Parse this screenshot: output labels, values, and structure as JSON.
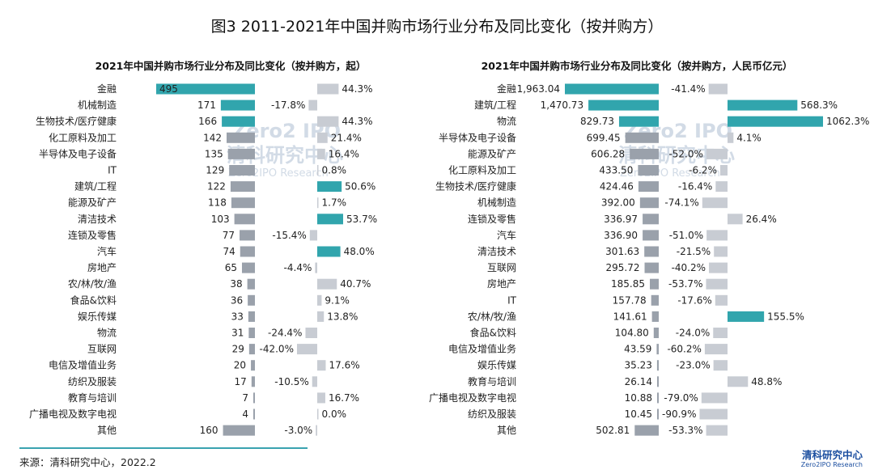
{
  "main_title": "图3 2011-2021年中国并购市场行业分布及同比变化（按并购方）",
  "source_text": "来源：清科研究中心，2022.2",
  "logo": {
    "cn": "清科研究中心",
    "en": "Zero2IPO Research"
  },
  "watermark": {
    "brand": "Zero2 IPO",
    "cn": "清科研究中心",
    "en": "Zero2IPO Research"
  },
  "colors": {
    "highlight": "#31a5ad",
    "bar": "#9aa1ab",
    "pct_bar": "#c8ccd3"
  },
  "chart_data": [
    {
      "type": "bar",
      "title": "2021年中国并购市场行业分布及同比变化（按并购方，起）",
      "categories": [
        "金融",
        "机械制造",
        "生物技术/医疗健康",
        "化工原料及加工",
        "半导体及电子设备",
        "IT",
        "建筑/工程",
        "能源及矿产",
        "清洁技术",
        "连锁及零售",
        "汽车",
        "房地产",
        "农/林/牧/渔",
        "食品&饮料",
        "娱乐传媒",
        "物流",
        "互联网",
        "电信及增值业务",
        "纺织及服装",
        "教育与培训",
        "广播电视及数字电视",
        "其他"
      ],
      "series": [
        {
          "values": [
            495,
            171,
            166,
            142,
            135,
            129,
            122,
            118,
            103,
            77,
            74,
            65,
            38,
            36,
            33,
            31,
            29,
            20,
            17,
            7,
            4,
            160
          ],
          "labels": [
            "495",
            "171",
            "166",
            "142",
            "135",
            "129",
            "122",
            "118",
            "103",
            "77",
            "74",
            "65",
            "38",
            "36",
            "33",
            "31",
            "29",
            "20",
            "17",
            "7",
            "4",
            "160"
          ],
          "highlight": [
            true,
            true,
            true,
            false,
            false,
            false,
            false,
            false,
            false,
            false,
            false,
            false,
            false,
            false,
            false,
            false,
            false,
            false,
            false,
            false,
            false,
            false
          ]
        },
        {
          "values": [
            44.3,
            -17.8,
            44.3,
            21.4,
            16.4,
            0.8,
            50.6,
            1.7,
            53.7,
            -15.4,
            48.0,
            -4.4,
            40.7,
            9.1,
            13.8,
            -24.4,
            -42.0,
            17.6,
            -10.5,
            16.7,
            0.0,
            -3.0
          ],
          "labels": [
            "44.3%",
            "-17.8%",
            "44.3%",
            "21.4%",
            "16.4%",
            "0.8%",
            "50.6%",
            "1.7%",
            "53.7%",
            "-15.4%",
            "48.0%",
            "-4.4%",
            "40.7%",
            "9.1%",
            "13.8%",
            "-24.4%",
            "-42.0%",
            "17.6%",
            "-10.5%",
            "16.7%",
            "0.0%",
            "-3.0%"
          ],
          "highlight": [
            false,
            false,
            false,
            false,
            false,
            false,
            true,
            false,
            true,
            false,
            true,
            false,
            false,
            false,
            false,
            false,
            false,
            false,
            false,
            false,
            false,
            false
          ]
        }
      ]
    },
    {
      "type": "bar",
      "title": "2021年中国并购市场行业分布及同比变化（按并购方，人民币亿元）",
      "categories": [
        "金融",
        "建筑/工程",
        "物流",
        "半导体及电子设备",
        "能源及矿产",
        "化工原料及加工",
        "生物技术/医疗健康",
        "机械制造",
        "连锁及零售",
        "汽车",
        "清洁技术",
        "互联网",
        "房地产",
        "IT",
        "农/林/牧/渔",
        "食品&饮料",
        "电信及增值业务",
        "娱乐传媒",
        "教育与培训",
        "广播电视及数字电视",
        "纺织及服装",
        "其他"
      ],
      "series": [
        {
          "values": [
            1963.04,
            1470.73,
            829.73,
            699.45,
            606.28,
            433.5,
            424.46,
            392.0,
            336.97,
            336.9,
            301.63,
            295.72,
            185.85,
            157.78,
            141.61,
            104.8,
            43.59,
            35.23,
            26.14,
            10.88,
            10.45,
            502.81
          ],
          "labels": [
            "1,963.04",
            "1,470.73",
            "829.73",
            "699.45",
            "606.28",
            "433.50",
            "424.46",
            "392.00",
            "336.97",
            "336.90",
            "301.63",
            "295.72",
            "185.85",
            "157.78",
            "141.61",
            "104.80",
            "43.59",
            "35.23",
            "26.14",
            "10.88",
            "10.45",
            "502.81"
          ],
          "highlight": [
            true,
            true,
            true,
            false,
            false,
            false,
            false,
            false,
            false,
            false,
            false,
            false,
            false,
            false,
            false,
            false,
            false,
            false,
            false,
            false,
            false,
            false
          ]
        },
        {
          "values": [
            -41.4,
            568.3,
            1062.3,
            4.1,
            -52.0,
            -6.2,
            -16.4,
            -74.1,
            26.4,
            -51.0,
            -21.5,
            -40.2,
            -53.7,
            -17.6,
            155.5,
            -24.0,
            -60.2,
            -23.0,
            48.8,
            -79.0,
            -90.9,
            -53.3
          ],
          "labels": [
            "-41.4%",
            "568.3%",
            "1062.3%",
            "4.1%",
            "-52.0%",
            "-6.2%",
            "-16.4%",
            "-74.1%",
            "26.4%",
            "-51.0%",
            "-21.5%",
            "-40.2%",
            "-53.7%",
            "-17.6%",
            "155.5%",
            "-24.0%",
            "-60.2%",
            "-23.0%",
            "48.8%",
            "-79.0%",
            "-90.9%",
            "-53.3%"
          ],
          "highlight": [
            false,
            true,
            true,
            false,
            false,
            false,
            false,
            false,
            false,
            false,
            false,
            false,
            false,
            false,
            true,
            false,
            false,
            false,
            false,
            false,
            false,
            false
          ]
        }
      ]
    }
  ]
}
